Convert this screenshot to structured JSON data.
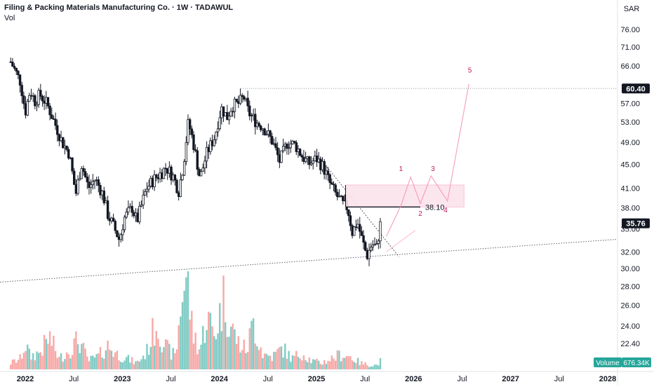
{
  "header": {
    "title": "Filing & Packing Materials Manufacturing Co. · 1W · TADAWUL",
    "volume_label": "Vol"
  },
  "currency": "SAR",
  "colors": {
    "up": "#26a69a",
    "down": "#ef5350",
    "candle": "#131722",
    "accent": "#e91e63",
    "vol_up": "#80cbc4",
    "vol_down": "#f7a9a7",
    "badge": "#131722",
    "vol_badge": "#26a69a"
  },
  "chart_data": {
    "type": "candlestick",
    "y_scale": "log",
    "y_ticks": [
      "76.00",
      "71.00",
      "66.00",
      "57.00",
      "53.00",
      "49.00",
      "45.00",
      "41.00",
      "38.00",
      "35.00",
      "32.00",
      "30.00",
      "28.00",
      "26.00",
      "24.00",
      "22.40"
    ],
    "x_ticks": [
      "2022",
      "Jul",
      "2023",
      "Jul",
      "2024",
      "Jul",
      "2025",
      "Jul",
      "2026",
      "Jul",
      "2027",
      "Jul",
      "2028"
    ],
    "price_badges": [
      {
        "label": "60.40",
        "value": 60.4
      },
      {
        "label": "35.76",
        "value": 35.76
      }
    ],
    "volume_badge": {
      "label": "Volume",
      "value": "676.34K"
    },
    "annotations": {
      "level_label": "38.10",
      "level_value": 38.1,
      "wave_labels": [
        "1",
        "2",
        "3",
        "4",
        "5"
      ],
      "zone": {
        "low": 38.1,
        "high": 41.5
      }
    },
    "price_path": [
      [
        2021.85,
        67.0
      ],
      [
        2021.95,
        62.0
      ],
      [
        2022.0,
        55.0
      ],
      [
        2022.05,
        60.0
      ],
      [
        2022.1,
        57.5
      ],
      [
        2022.15,
        59.0
      ],
      [
        2022.22,
        57.0
      ],
      [
        2022.3,
        53.0
      ],
      [
        2022.38,
        49.0
      ],
      [
        2022.45,
        47.0
      ],
      [
        2022.52,
        40.0
      ],
      [
        2022.58,
        45.0
      ],
      [
        2022.65,
        41.0
      ],
      [
        2022.72,
        42.5
      ],
      [
        2022.8,
        40.0
      ],
      [
        2022.85,
        37.0
      ],
      [
        2022.92,
        35.0
      ],
      [
        2022.97,
        33.5
      ],
      [
        2023.02,
        36.5
      ],
      [
        2023.1,
        38.0
      ],
      [
        2023.15,
        36.0
      ],
      [
        2023.25,
        41.0
      ],
      [
        2023.33,
        42.5
      ],
      [
        2023.4,
        43.5
      ],
      [
        2023.45,
        44.5
      ],
      [
        2023.52,
        43.0
      ],
      [
        2023.58,
        40.5
      ],
      [
        2023.63,
        45.0
      ],
      [
        2023.68,
        53.0
      ],
      [
        2023.73,
        49.0
      ],
      [
        2023.8,
        42.5
      ],
      [
        2023.87,
        47.0
      ],
      [
        2023.95,
        50.0
      ],
      [
        2024.02,
        56.0
      ],
      [
        2024.08,
        54.0
      ],
      [
        2024.13,
        56.5
      ],
      [
        2024.2,
        57.0
      ],
      [
        2024.25,
        58.5
      ],
      [
        2024.3,
        55.0
      ],
      [
        2024.38,
        53.0
      ],
      [
        2024.45,
        52.0
      ],
      [
        2024.55,
        49.0
      ],
      [
        2024.62,
        45.5
      ],
      [
        2024.7,
        49.0
      ],
      [
        2024.78,
        48.5
      ],
      [
        2024.85,
        46.5
      ],
      [
        2024.92,
        45.0
      ],
      [
        2025.0,
        46.0
      ],
      [
        2025.07,
        44.5
      ],
      [
        2025.13,
        42.0
      ],
      [
        2025.2,
        40.0
      ],
      [
        2025.27,
        38.5
      ],
      [
        2025.32,
        38.0
      ],
      [
        2025.37,
        34.5
      ],
      [
        2025.42,
        36.0
      ],
      [
        2025.47,
        33.5
      ],
      [
        2025.52,
        31.5
      ],
      [
        2025.57,
        33.0
      ],
      [
        2025.62,
        32.5
      ],
      [
        2025.66,
        35.76
      ]
    ],
    "volume_path": [
      [
        2021.85,
        3
      ],
      [
        2021.95,
        5
      ],
      [
        2022.0,
        12
      ],
      [
        2022.05,
        6
      ],
      [
        2022.15,
        8
      ],
      [
        2022.25,
        15
      ],
      [
        2022.35,
        5
      ],
      [
        2022.45,
        9
      ],
      [
        2022.55,
        14
      ],
      [
        2022.65,
        4
      ],
      [
        2022.75,
        6
      ],
      [
        2022.85,
        11
      ],
      [
        2022.95,
        7
      ],
      [
        2023.05,
        5
      ],
      [
        2023.15,
        3
      ],
      [
        2023.25,
        8
      ],
      [
        2023.35,
        22
      ],
      [
        2023.45,
        10
      ],
      [
        2023.55,
        6
      ],
      [
        2023.62,
        38
      ],
      [
        2023.67,
        44
      ],
      [
        2023.72,
        18
      ],
      [
        2023.8,
        9
      ],
      [
        2023.87,
        25
      ],
      [
        2023.95,
        16
      ],
      [
        2024.05,
        34
      ],
      [
        2024.12,
        20
      ],
      [
        2024.2,
        12
      ],
      [
        2024.28,
        9
      ],
      [
        2024.35,
        22
      ],
      [
        2024.45,
        7
      ],
      [
        2024.55,
        6
      ],
      [
        2024.65,
        10
      ],
      [
        2024.75,
        5
      ],
      [
        2024.85,
        8
      ],
      [
        2024.95,
        4
      ],
      [
        2025.05,
        3
      ],
      [
        2025.15,
        5
      ],
      [
        2025.25,
        7
      ],
      [
        2025.35,
        6
      ],
      [
        2025.45,
        3
      ],
      [
        2025.55,
        2
      ],
      [
        2025.62,
        2
      ],
      [
        2025.66,
        4
      ]
    ]
  }
}
